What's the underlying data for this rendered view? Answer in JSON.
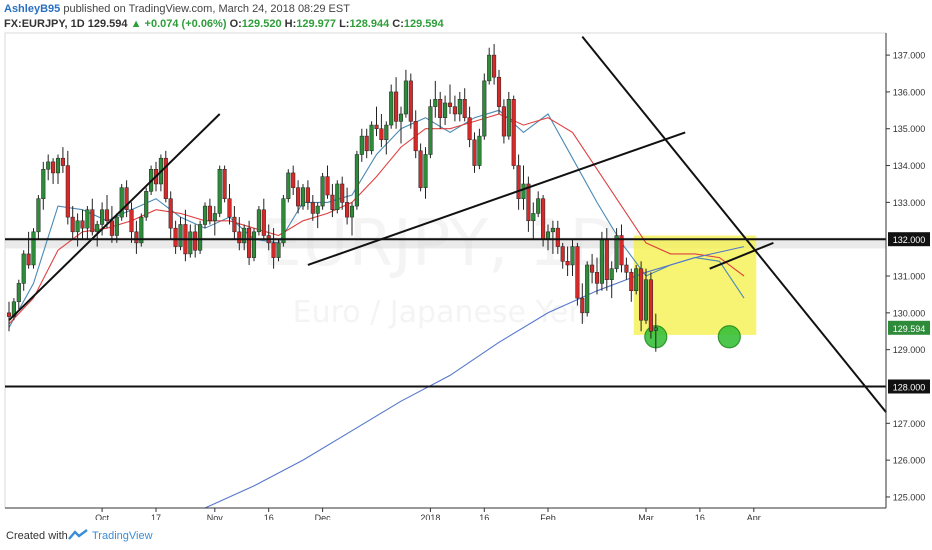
{
  "header": {
    "author": "AshleyB95",
    "published": "published on TradingView.com, March 24, 2018 08:29 EST",
    "symbol": "FX:EURJPY, 1D",
    "last": "129.594",
    "change": "+0.074 (+0.06%)",
    "o_label": "O:",
    "o_value": "129.520",
    "h_label": "H:",
    "h_value": "129.977",
    "l_label": "L:",
    "l_value": "128.944",
    "c_label": "C:",
    "c_value": "129.594"
  },
  "watermark": {
    "symbol": "EURJPY, 1D",
    "name": "Euro / Japanese Yen"
  },
  "footer": {
    "created_with": "Created with",
    "brand": "TradingView"
  },
  "colors": {
    "up": "#2e8b3a",
    "down": "#d42a2a",
    "ema_fast": "#4a8ab5",
    "ema_slow": "#e04040",
    "ma_long": "#5577cc",
    "highlight": "#f4f044",
    "circle": "#39c039",
    "price_tag": "#2e8b3a"
  },
  "chart_data": {
    "type": "candlestick",
    "y_axis": {
      "min": 124.7,
      "max": 137.6,
      "ticks": [
        "125.000",
        "126.000",
        "127.000",
        "128.000",
        "129.000",
        "130.000",
        "131.000",
        "132.000",
        "133.000",
        "134.000",
        "135.000",
        "136.000",
        "137.000"
      ]
    },
    "x_ticks": [
      {
        "label": "Oct",
        "index": 19
      },
      {
        "label": "17",
        "index": 30
      },
      {
        "label": "Nov",
        "index": 42
      },
      {
        "label": "16",
        "index": 53
      },
      {
        "label": "Dec",
        "index": 64
      },
      {
        "label": "2018",
        "index": 86
      },
      {
        "label": "16",
        "index": 97
      },
      {
        "label": "Feb",
        "index": 110
      },
      {
        "label": "Mar",
        "index": 130
      },
      {
        "label": "16",
        "index": 141
      },
      {
        "label": "Apr",
        "index": 152
      }
    ],
    "levels": [
      {
        "value": 132.0,
        "label": "132.000"
      },
      {
        "value": 128.0,
        "label": "128.000"
      }
    ],
    "last_price": {
      "value": 129.594,
      "label": "129.594"
    },
    "candles": [
      [
        130.0,
        130.3,
        129.5,
        129.9
      ],
      [
        129.9,
        130.4,
        129.8,
        130.3
      ],
      [
        130.3,
        130.9,
        130.1,
        130.8
      ],
      [
        130.8,
        131.7,
        130.6,
        131.6
      ],
      [
        131.6,
        132.2,
        131.2,
        131.3
      ],
      [
        131.3,
        132.3,
        131.2,
        132.2
      ],
      [
        132.2,
        133.2,
        132.0,
        133.1
      ],
      [
        133.1,
        134.1,
        132.8,
        133.9
      ],
      [
        133.9,
        134.3,
        133.6,
        134.1
      ],
      [
        134.1,
        134.2,
        133.5,
        133.8
      ],
      [
        133.8,
        134.3,
        133.5,
        134.2
      ],
      [
        134.2,
        134.5,
        133.8,
        134.0
      ],
      [
        134.0,
        134.4,
        132.4,
        132.6
      ],
      [
        132.6,
        132.9,
        132.0,
        132.2
      ],
      [
        132.2,
        132.7,
        131.8,
        132.5
      ],
      [
        132.5,
        132.8,
        132.0,
        132.3
      ],
      [
        132.3,
        132.9,
        132.0,
        132.8
      ],
      [
        132.8,
        133.1,
        132.1,
        132.2
      ],
      [
        132.2,
        132.5,
        131.8,
        132.4
      ],
      [
        132.4,
        133.0,
        132.1,
        132.8
      ],
      [
        132.8,
        133.2,
        132.3,
        132.5
      ],
      [
        132.5,
        132.9,
        131.9,
        132.1
      ],
      [
        132.1,
        132.7,
        131.9,
        132.6
      ],
      [
        132.6,
        133.5,
        132.5,
        133.4
      ],
      [
        133.4,
        133.6,
        132.6,
        132.8
      ],
      [
        132.8,
        133.0,
        131.9,
        132.2
      ],
      [
        132.2,
        132.5,
        131.6,
        131.9
      ],
      [
        131.9,
        132.7,
        131.8,
        132.6
      ],
      [
        132.6,
        133.4,
        132.5,
        133.3
      ],
      [
        133.3,
        134.0,
        133.2,
        133.9
      ],
      [
        133.9,
        134.1,
        133.3,
        133.5
      ],
      [
        133.5,
        134.3,
        133.3,
        134.2
      ],
      [
        134.2,
        134.4,
        133.0,
        133.1
      ],
      [
        133.1,
        133.3,
        132.0,
        132.3
      ],
      [
        132.3,
        132.5,
        131.6,
        131.8
      ],
      [
        131.8,
        132.6,
        131.7,
        132.4
      ],
      [
        132.4,
        132.8,
        131.4,
        131.6
      ],
      [
        131.6,
        132.4,
        131.5,
        132.2
      ],
      [
        132.2,
        132.4,
        131.5,
        131.7
      ],
      [
        131.7,
        132.5,
        131.6,
        132.4
      ],
      [
        132.4,
        133.0,
        132.3,
        132.9
      ],
      [
        132.9,
        133.1,
        132.4,
        132.5
      ],
      [
        132.5,
        132.9,
        132.1,
        132.7
      ],
      [
        132.7,
        134.0,
        132.6,
        133.9
      ],
      [
        133.9,
        134.0,
        133.0,
        133.1
      ],
      [
        133.1,
        133.5,
        132.4,
        132.6
      ],
      [
        132.6,
        132.9,
        132.0,
        132.2
      ],
      [
        132.2,
        132.6,
        131.7,
        131.9
      ],
      [
        131.9,
        132.4,
        131.7,
        132.3
      ],
      [
        132.3,
        132.5,
        131.3,
        131.5
      ],
      [
        131.5,
        132.3,
        131.4,
        132.2
      ],
      [
        132.2,
        132.9,
        132.1,
        132.8
      ],
      [
        132.8,
        133.1,
        132.0,
        132.1
      ],
      [
        132.1,
        132.4,
        131.7,
        131.9
      ],
      [
        131.9,
        132.3,
        131.2,
        131.5
      ],
      [
        131.5,
        132.0,
        131.4,
        131.9
      ],
      [
        131.9,
        133.2,
        131.8,
        133.1
      ],
      [
        133.1,
        133.9,
        133.0,
        133.8
      ],
      [
        133.8,
        134.0,
        133.2,
        133.4
      ],
      [
        133.4,
        133.6,
        132.7,
        132.9
      ],
      [
        132.9,
        133.5,
        132.8,
        133.4
      ],
      [
        133.4,
        133.6,
        132.8,
        133.0
      ],
      [
        133.0,
        133.2,
        132.5,
        132.7
      ],
      [
        132.7,
        133.0,
        132.3,
        132.9
      ],
      [
        132.9,
        133.8,
        132.8,
        133.7
      ],
      [
        133.7,
        134.0,
        133.1,
        133.2
      ],
      [
        133.2,
        133.5,
        132.6,
        132.8
      ],
      [
        132.8,
        133.6,
        132.7,
        133.5
      ],
      [
        133.5,
        133.7,
        132.8,
        133.0
      ],
      [
        133.0,
        133.4,
        132.4,
        132.6
      ],
      [
        132.6,
        133.0,
        132.1,
        132.9
      ],
      [
        132.9,
        134.4,
        132.8,
        134.3
      ],
      [
        134.3,
        135.0,
        134.1,
        134.8
      ],
      [
        134.8,
        135.0,
        134.2,
        134.4
      ],
      [
        134.4,
        135.2,
        134.3,
        135.1
      ],
      [
        135.1,
        135.6,
        134.8,
        135.0
      ],
      [
        135.0,
        135.4,
        134.5,
        134.7
      ],
      [
        134.7,
        135.2,
        134.3,
        135.1
      ],
      [
        135.1,
        136.2,
        135.0,
        136.0
      ],
      [
        136.0,
        136.4,
        135.0,
        135.2
      ],
      [
        135.2,
        135.6,
        134.6,
        135.4
      ],
      [
        135.4,
        136.6,
        135.3,
        136.3
      ],
      [
        136.3,
        136.5,
        135.0,
        135.2
      ],
      [
        135.2,
        135.5,
        134.2,
        134.4
      ],
      [
        134.4,
        134.6,
        133.3,
        133.4
      ],
      [
        133.4,
        134.5,
        133.1,
        134.3
      ],
      [
        134.3,
        135.8,
        134.2,
        135.6
      ],
      [
        135.6,
        136.3,
        135.3,
        135.8
      ],
      [
        135.8,
        136.0,
        135.0,
        135.3
      ],
      [
        135.3,
        135.9,
        135.1,
        135.7
      ],
      [
        135.7,
        136.2,
        135.4,
        135.6
      ],
      [
        135.6,
        135.9,
        135.2,
        135.4
      ],
      [
        135.4,
        136.0,
        135.2,
        135.8
      ],
      [
        135.8,
        136.1,
        135.2,
        135.3
      ],
      [
        135.3,
        135.6,
        134.5,
        134.7
      ],
      [
        134.7,
        134.9,
        133.8,
        134.0
      ],
      [
        134.0,
        135.0,
        133.9,
        134.8
      ],
      [
        134.8,
        136.5,
        134.7,
        136.3
      ],
      [
        136.3,
        137.2,
        136.2,
        137.0
      ],
      [
        137.0,
        137.3,
        136.2,
        136.4
      ],
      [
        136.4,
        136.6,
        135.4,
        135.6
      ],
      [
        135.6,
        135.8,
        134.6,
        134.8
      ],
      [
        134.8,
        136.0,
        134.7,
        135.8
      ],
      [
        135.8,
        135.9,
        133.9,
        134.0
      ],
      [
        134.0,
        134.3,
        132.8,
        133.1
      ],
      [
        133.1,
        134.0,
        132.8,
        133.5
      ],
      [
        133.5,
        133.7,
        132.2,
        132.5
      ],
      [
        132.5,
        133.0,
        132.0,
        132.7
      ],
      [
        132.7,
        133.3,
        132.6,
        133.1
      ],
      [
        133.1,
        133.2,
        131.8,
        132.0
      ],
      [
        132.0,
        132.4,
        131.7,
        132.2
      ],
      [
        132.2,
        132.5,
        131.6,
        132.3
      ],
      [
        132.3,
        132.5,
        131.6,
        131.8
      ],
      [
        131.8,
        131.9,
        131.2,
        131.4
      ],
      [
        131.4,
        131.8,
        131.0,
        131.3
      ],
      [
        131.3,
        132.0,
        131.0,
        131.8
      ],
      [
        131.8,
        131.9,
        130.2,
        130.4
      ],
      [
        130.4,
        130.8,
        129.7,
        130.0
      ],
      [
        130.0,
        131.4,
        129.9,
        131.3
      ],
      [
        131.3,
        131.6,
        130.8,
        131.1
      ],
      [
        131.1,
        131.5,
        130.5,
        130.8
      ],
      [
        130.8,
        132.2,
        130.6,
        132.0
      ],
      [
        132.0,
        132.3,
        130.6,
        130.9
      ],
      [
        130.9,
        131.4,
        130.4,
        131.2
      ],
      [
        131.2,
        132.3,
        131.1,
        132.1
      ],
      [
        132.1,
        132.4,
        131.1,
        131.3
      ],
      [
        131.3,
        131.5,
        130.9,
        131.1
      ],
      [
        131.1,
        131.2,
        130.3,
        130.6
      ],
      [
        130.6,
        131.3,
        130.5,
        131.2
      ],
      [
        131.2,
        131.4,
        129.5,
        129.8
      ],
      [
        129.8,
        131.2,
        129.7,
        130.9
      ],
      [
        130.9,
        131.1,
        129.3,
        129.5
      ],
      [
        129.52,
        129.977,
        128.944,
        129.594
      ]
    ],
    "moving_averages": [
      {
        "color": "#4a8ab5",
        "points": [
          [
            0,
            129.6
          ],
          [
            5,
            130.8
          ],
          [
            10,
            132.9
          ],
          [
            15,
            132.8
          ],
          [
            20,
            132.5
          ],
          [
            25,
            132.8
          ],
          [
            30,
            133.1
          ],
          [
            35,
            132.6
          ],
          [
            40,
            132.3
          ],
          [
            45,
            132.6
          ],
          [
            50,
            132.0
          ],
          [
            55,
            131.9
          ],
          [
            60,
            133.0
          ],
          [
            65,
            133.0
          ],
          [
            70,
            133.2
          ],
          [
            75,
            134.3
          ],
          [
            80,
            135.0
          ],
          [
            85,
            135.3
          ],
          [
            90,
            134.9
          ],
          [
            95,
            135.3
          ],
          [
            100,
            135.5
          ],
          [
            105,
            134.9
          ],
          [
            110,
            135.4
          ],
          [
            115,
            134.2
          ],
          [
            120,
            133.0
          ],
          [
            125,
            131.9
          ],
          [
            130,
            131.0
          ],
          [
            135,
            131.3
          ],
          [
            140,
            131.5
          ],
          [
            145,
            131.4
          ],
          [
            150,
            130.4
          ]
        ]
      },
      {
        "color": "#e04040",
        "points": [
          [
            0,
            129.7
          ],
          [
            5,
            130.4
          ],
          [
            10,
            131.7
          ],
          [
            15,
            132.2
          ],
          [
            20,
            132.3
          ],
          [
            25,
            132.5
          ],
          [
            30,
            132.8
          ],
          [
            35,
            132.7
          ],
          [
            40,
            132.5
          ],
          [
            45,
            132.5
          ],
          [
            50,
            132.3
          ],
          [
            55,
            132.1
          ],
          [
            60,
            132.5
          ],
          [
            65,
            132.7
          ],
          [
            70,
            133.0
          ],
          [
            75,
            133.7
          ],
          [
            80,
            134.5
          ],
          [
            85,
            135.0
          ],
          [
            90,
            135.0
          ],
          [
            95,
            135.2
          ],
          [
            100,
            135.4
          ],
          [
            105,
            135.1
          ],
          [
            110,
            135.3
          ],
          [
            115,
            134.9
          ],
          [
            120,
            133.9
          ],
          [
            125,
            132.9
          ],
          [
            130,
            131.9
          ],
          [
            135,
            131.6
          ],
          [
            140,
            131.6
          ],
          [
            145,
            131.5
          ],
          [
            150,
            131.0
          ]
        ]
      },
      {
        "color": "#5577cc",
        "points": [
          [
            40,
            124.7
          ],
          [
            50,
            125.3
          ],
          [
            60,
            126.0
          ],
          [
            70,
            126.8
          ],
          [
            80,
            127.6
          ],
          [
            90,
            128.3
          ],
          [
            100,
            129.2
          ],
          [
            110,
            130.0
          ],
          [
            120,
            130.6
          ],
          [
            130,
            131.1
          ],
          [
            140,
            131.5
          ],
          [
            150,
            131.8
          ]
        ]
      }
    ]
  }
}
